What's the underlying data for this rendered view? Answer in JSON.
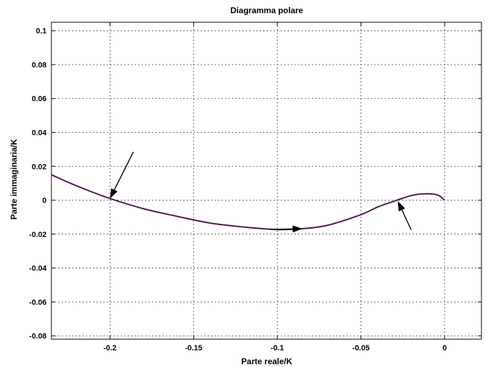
{
  "chart_data": {
    "type": "line",
    "title": "Diagramma polare",
    "xlabel": "Parte reale/K",
    "ylabel": "Parte immaginaria/K",
    "xlim": [
      -0.235,
      0.022
    ],
    "ylim": [
      -0.082,
      0.105
    ],
    "xticks": [
      -0.2,
      -0.15,
      -0.1,
      -0.05,
      0
    ],
    "xtick_labels": [
      "-0.2",
      "-0.15",
      "-0.1",
      "-0.05",
      "0"
    ],
    "yticks": [
      0.1,
      0.08,
      0.06,
      0.04,
      0.02,
      0,
      -0.02,
      -0.04,
      -0.06,
      -0.08
    ],
    "ytick_labels": [
      "0.1",
      "0.08",
      "0.06",
      "0.04",
      "0.02",
      "0",
      "-0.02",
      "-0.04",
      "-0.06",
      "-0.08"
    ],
    "grid": true,
    "series": [
      {
        "color": "#4b1a4f",
        "x": [
          -0.235,
          -0.22,
          -0.2,
          -0.18,
          -0.16,
          -0.14,
          -0.12,
          -0.1,
          -0.085,
          -0.07,
          -0.05,
          -0.04,
          -0.03,
          -0.025,
          -0.02,
          -0.015,
          -0.01,
          -0.006,
          -0.003,
          0
        ],
        "y": [
          0.015,
          0.0085,
          0.001,
          -0.005,
          -0.0095,
          -0.0135,
          -0.0158,
          -0.0173,
          -0.0168,
          -0.0148,
          -0.0085,
          -0.004,
          -0.0005,
          0.0012,
          0.0027,
          0.0036,
          0.0038,
          0.0035,
          0.0025,
          0
        ]
      }
    ],
    "annotations": [
      {
        "type": "arrow",
        "from": [
          -0.186,
          0.0285
        ],
        "to": [
          -0.2,
          0.001
        ]
      },
      {
        "type": "arrow",
        "from": [
          -0.104,
          -0.0173
        ],
        "to": [
          -0.085,
          -0.0168
        ]
      },
      {
        "type": "arrow",
        "from": [
          -0.02,
          -0.0175
        ],
        "to": [
          -0.028,
          -0.0005
        ]
      }
    ]
  }
}
